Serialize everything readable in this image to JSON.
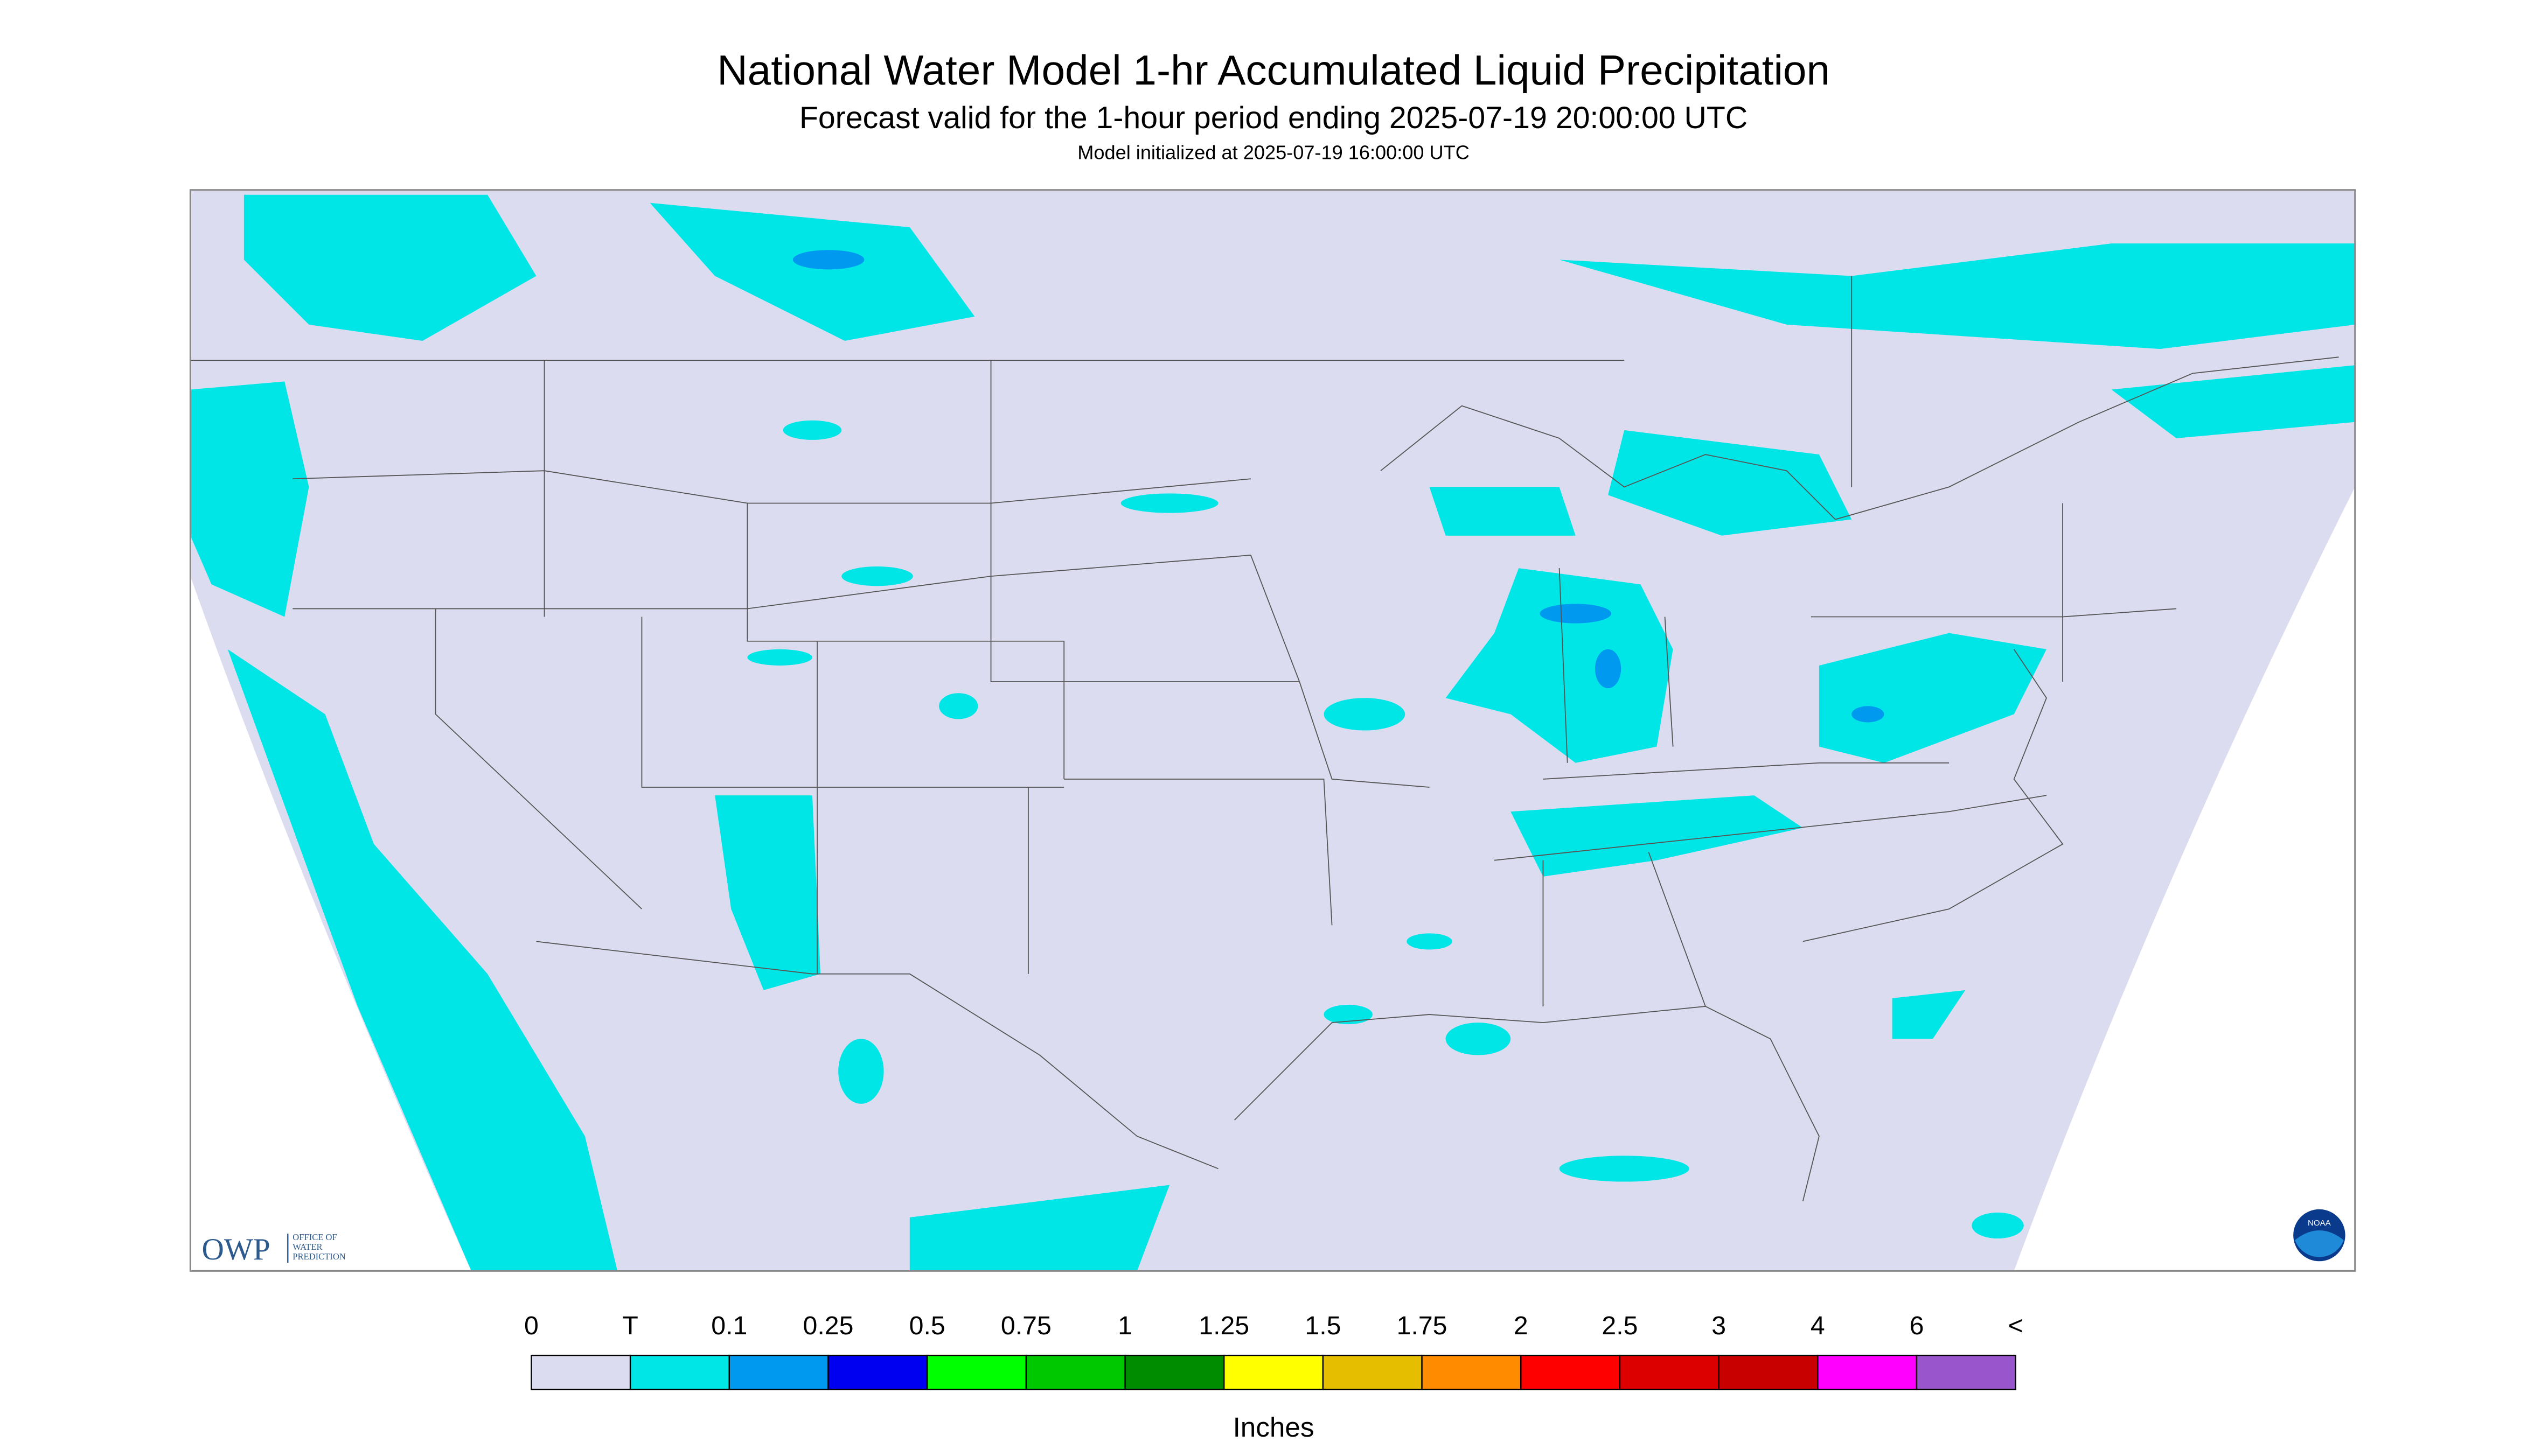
{
  "header": {
    "title": "National Water Model 1-hr Accumulated Liquid Precipitation",
    "subtitle": "Forecast valid for the 1-hour period ending 2025-07-19 20:00:00 UTC",
    "note": "Model initialized at 2025-07-19 16:00:00 UTC"
  },
  "logo": {
    "acronym": "OWP",
    "lines": [
      "OFFICE OF",
      "WATER",
      "PREDICTION"
    ],
    "noaa": "NOAA"
  },
  "legend": {
    "labels": [
      "0",
      "T",
      "0.1",
      "0.25",
      "0.5",
      "0.75",
      "1",
      "1.25",
      "1.5",
      "1.75",
      "2",
      "2.5",
      "3",
      "4",
      "6",
      "<"
    ],
    "colors": [
      "#dcdcf0",
      "#00e6e6",
      "#0099f0",
      "#0000f0",
      "#00ff00",
      "#00c800",
      "#008c00",
      "#ffff00",
      "#e6be00",
      "#ff8c00",
      "#ff0000",
      "#dc0000",
      "#c80000",
      "#ff00ff",
      "#9955cc"
    ],
    "unit": "Inches"
  }
}
